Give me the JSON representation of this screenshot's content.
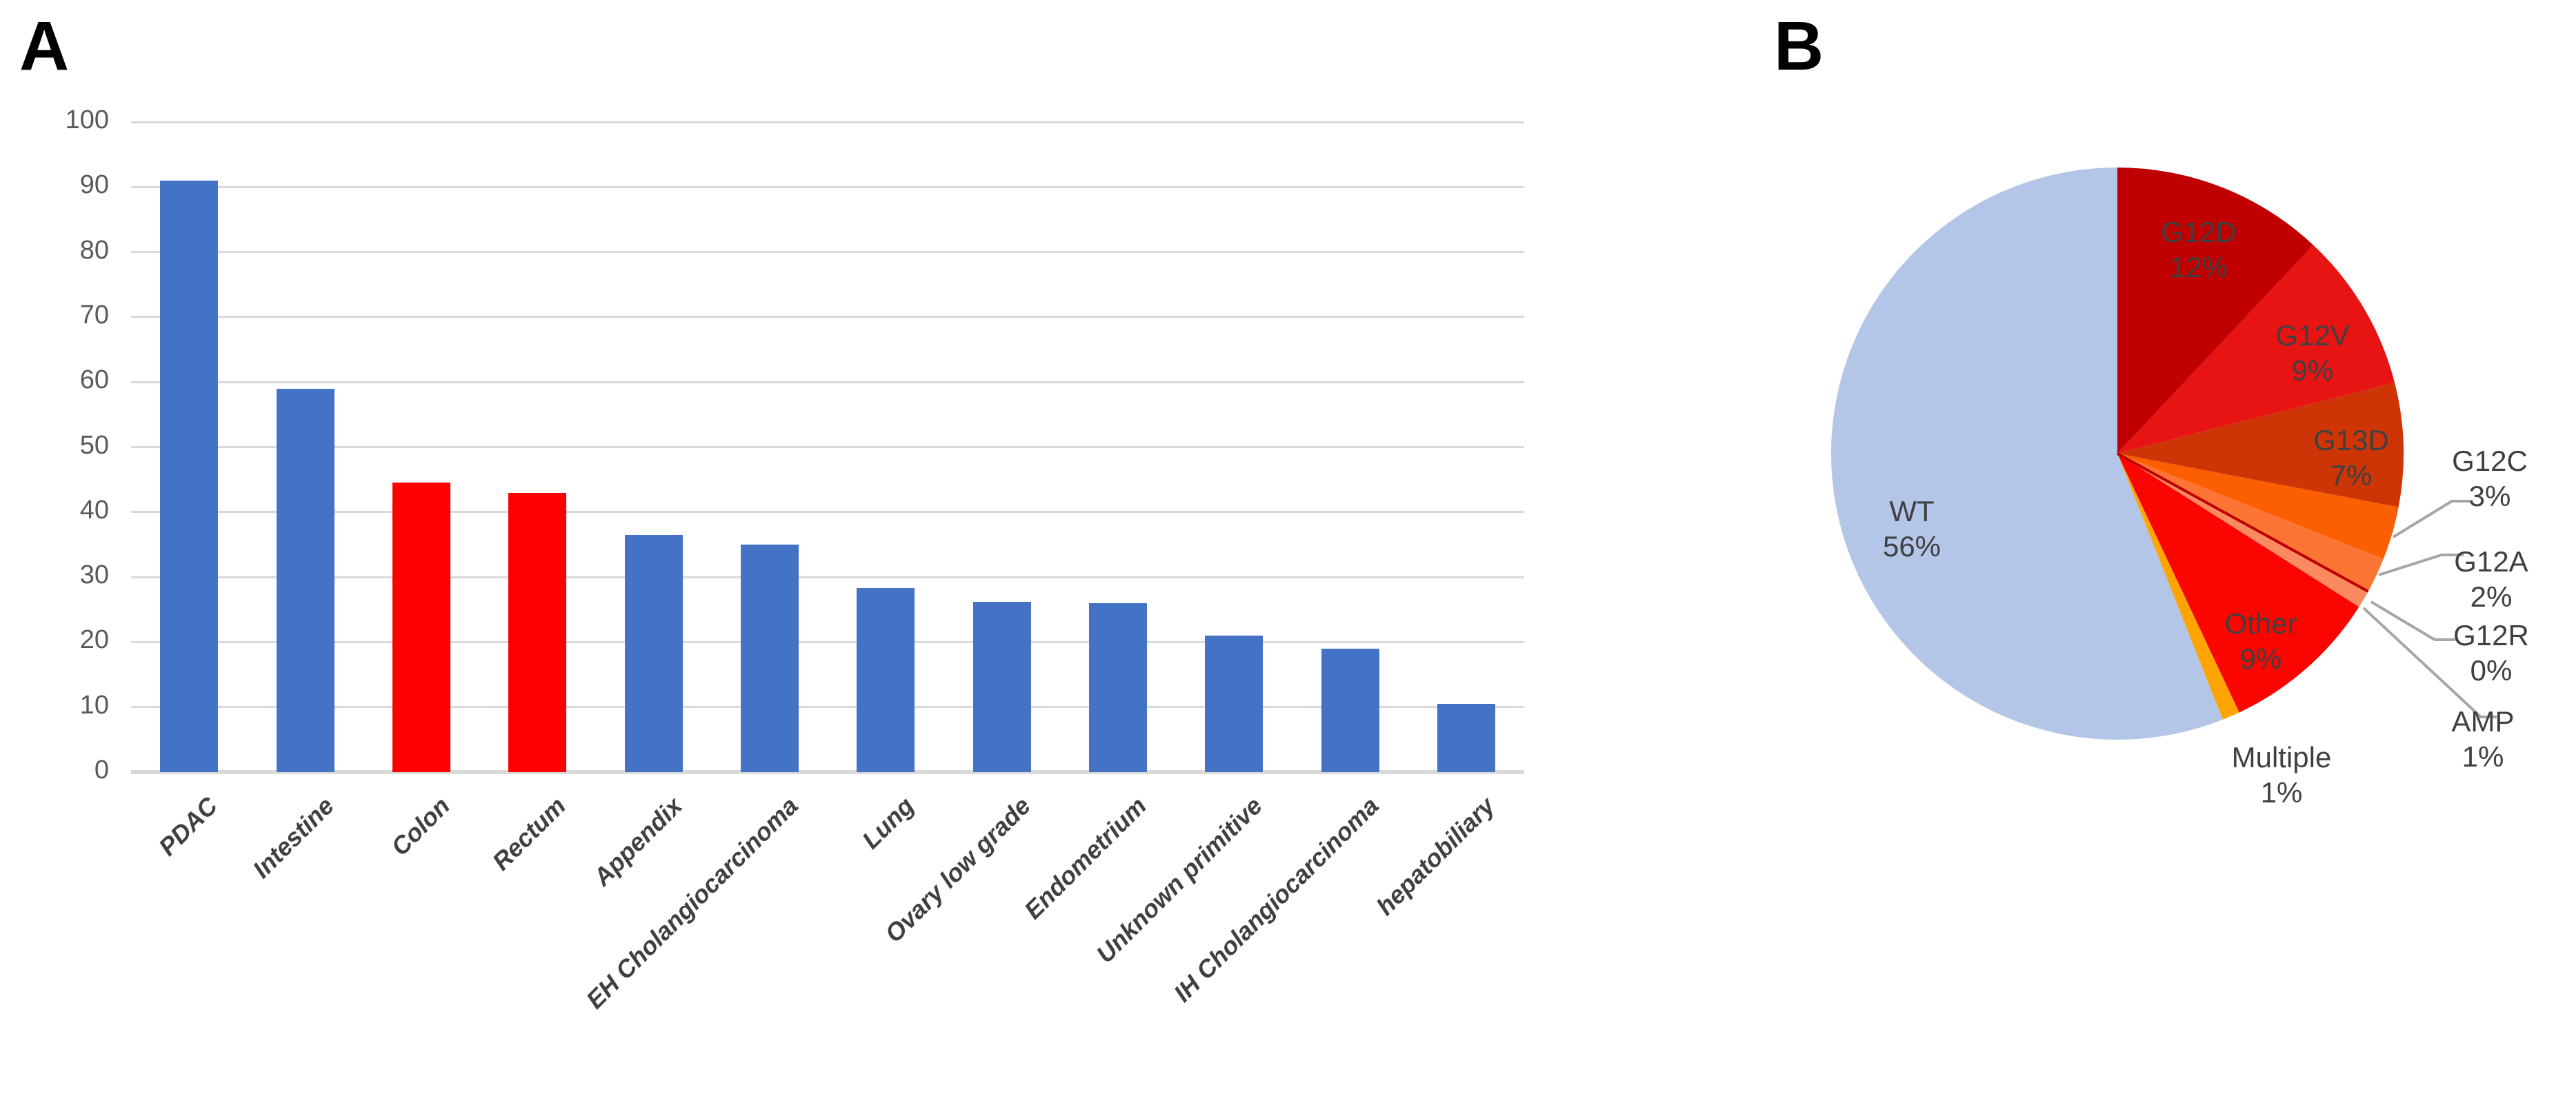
{
  "figure": {
    "panel_a_label": "A",
    "panel_b_label": "B"
  },
  "colors": {
    "bar_blue": "#4472C4",
    "bar_red": "#FF0000",
    "gridline": "#D9D9D9",
    "y_axis_label": "#595959",
    "category_label": "#404040",
    "pie_label": "#404040",
    "leader_line": "#A6A6A6"
  },
  "chart_data": [
    {
      "type": "bar",
      "title": "",
      "xlabel": "",
      "ylabel": "",
      "ylim": [
        0,
        100
      ],
      "ytick_step": 10,
      "grid": true,
      "legend": "none",
      "categories": [
        "PDAC",
        "Intestine",
        "Colon",
        "Rectum",
        "Appendix",
        "EH Cholangiocarcinoma",
        "Lung",
        "Ovary low grade",
        "Endometrium",
        "Unknown primitive",
        "IH Cholangiocarcinoma",
        "hepatobiliary"
      ],
      "values": [
        91,
        59,
        44.5,
        43,
        36.5,
        35,
        28.3,
        26.2,
        26,
        21,
        19,
        10.5
      ],
      "bar_colors": [
        "#4472C4",
        "#4472C4",
        "#FF0000",
        "#FF0000",
        "#4472C4",
        "#4472C4",
        "#4472C4",
        "#4472C4",
        "#4472C4",
        "#4472C4",
        "#4472C4",
        "#4472C4"
      ]
    },
    {
      "type": "pie",
      "title": "",
      "start_angle_deg": 0,
      "direction": "clockwise",
      "legend": "none",
      "slices": [
        {
          "label": "G12D",
          "value": 12,
          "pct_text": "12%",
          "color": "#C00000",
          "label_placement": "inside"
        },
        {
          "label": "G12V",
          "value": 9,
          "pct_text": "9%",
          "color": "#E81414",
          "label_placement": "inside"
        },
        {
          "label": "G13D",
          "value": 7,
          "pct_text": "7%",
          "color": "#CE3506",
          "label_placement": "inside"
        },
        {
          "label": "G12C",
          "value": 3,
          "pct_text": "3%",
          "color": "#FC5E02",
          "label_placement": "outside"
        },
        {
          "label": "G12A",
          "value": 2,
          "pct_text": "2%",
          "color": "#FC7535",
          "label_placement": "outside"
        },
        {
          "label": "G12R",
          "value": 0,
          "pct_text": "0%",
          "color": "#BF0000",
          "label_placement": "outside"
        },
        {
          "label": "AMP",
          "value": 1,
          "pct_text": "1%",
          "color": "#FC8A60",
          "label_placement": "outside"
        },
        {
          "label": "Other",
          "value": 9,
          "pct_text": "9%",
          "color": "#FB0500",
          "label_placement": "inside"
        },
        {
          "label": "Multiple",
          "value": 1,
          "pct_text": "1%",
          "color": "#FFA402",
          "label_placement": "outside"
        },
        {
          "label": "WT",
          "value": 56,
          "pct_text": "56%",
          "color": "#B4C6E7",
          "label_placement": "inside"
        }
      ]
    }
  ]
}
